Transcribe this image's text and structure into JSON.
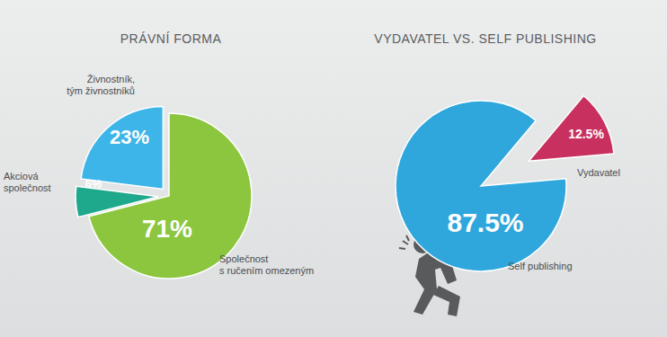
{
  "chart_data": [
    {
      "type": "pie",
      "title": "PRÁVNÍ FORMA",
      "categories": [
        "Společnost\ns ručením omezeným",
        "Akciová\nspolečnost",
        "Živnostník,\ntým živnostníků"
      ],
      "values": [
        71,
        6,
        23
      ],
      "value_labels": [
        "71%",
        "6%",
        "23%"
      ],
      "colors": [
        "#8cc63f",
        "#1fa98c",
        "#3db5e8"
      ],
      "data_labels": true
    },
    {
      "type": "pie",
      "title": "VYDAVATEL VS. SELF PUBLISHING",
      "categories": [
        "Self publishing",
        "Vydavatel"
      ],
      "values": [
        87.5,
        12.5
      ],
      "value_labels": [
        "87.5%",
        "12.5%"
      ],
      "colors": [
        "#2fa7dd",
        "#c8315f"
      ],
      "data_labels": true
    }
  ]
}
